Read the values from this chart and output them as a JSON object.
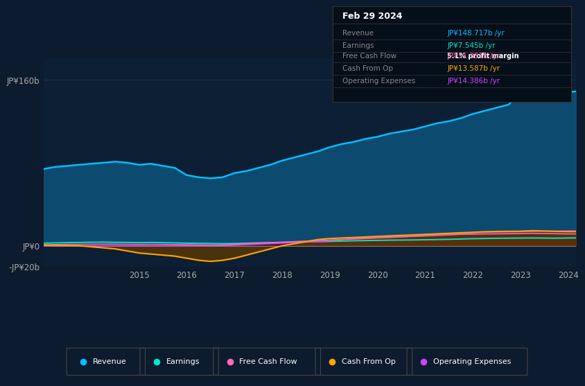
{
  "bg_color": "#0d1b2e",
  "plot_bg_color": "#0d1f35",
  "grid_color": "#1a3050",
  "title_date": "Feb 29 2024",
  "info_box_rows": [
    {
      "label": "Revenue",
      "value": "JP¥148.717b /yr",
      "color": "#00bfff",
      "extra": null
    },
    {
      "label": "Earnings",
      "value": "JP¥7.545b /yr",
      "color": "#00e5cc",
      "extra": "5.1% profit margin"
    },
    {
      "label": "Free Cash Flow",
      "value": "JP¥11.391b /yr",
      "color": "#ff69b4",
      "extra": null
    },
    {
      "label": "Cash From Op",
      "value": "JP¥13.587b /yr",
      "color": "#ffa500",
      "extra": null
    },
    {
      "label": "Operating Expenses",
      "value": "JP¥14.386b /yr",
      "color": "#cc44ff",
      "extra": null
    }
  ],
  "years": [
    2013.0,
    2013.25,
    2013.5,
    2013.75,
    2014.0,
    2014.25,
    2014.5,
    2014.75,
    2015.0,
    2015.25,
    2015.5,
    2015.75,
    2016.0,
    2016.25,
    2016.5,
    2016.75,
    2017.0,
    2017.25,
    2017.5,
    2017.75,
    2018.0,
    2018.25,
    2018.5,
    2018.75,
    2019.0,
    2019.25,
    2019.5,
    2019.75,
    2020.0,
    2020.25,
    2020.5,
    2020.75,
    2021.0,
    2021.25,
    2021.5,
    2021.75,
    2022.0,
    2022.25,
    2022.5,
    2022.75,
    2023.0,
    2023.25,
    2023.5,
    2023.75,
    2024.0,
    2024.16
  ],
  "revenue": [
    74,
    76,
    77,
    78,
    79,
    80,
    81,
    80,
    78,
    79,
    77,
    75,
    68,
    66,
    65,
    66,
    70,
    72,
    75,
    78,
    82,
    85,
    88,
    91,
    95,
    98,
    100,
    103,
    105,
    108,
    110,
    112,
    115,
    118,
    120,
    123,
    127,
    130,
    133,
    136,
    148,
    155,
    153,
    151,
    148,
    148.7
  ],
  "earnings": [
    2.5,
    2.8,
    3.0,
    3.2,
    3.4,
    3.5,
    3.3,
    3.2,
    3.0,
    3.2,
    3.0,
    2.8,
    2.5,
    2.3,
    2.2,
    2.0,
    2.2,
    2.5,
    2.8,
    3.0,
    3.2,
    3.5,
    3.8,
    4.0,
    4.2,
    4.5,
    4.8,
    5.0,
    5.2,
    5.4,
    5.5,
    5.6,
    5.8,
    6.0,
    6.2,
    6.5,
    6.8,
    7.0,
    7.2,
    7.3,
    7.4,
    7.5,
    7.4,
    7.3,
    7.5,
    7.545
  ],
  "free_cash_flow": [
    1.0,
    1.2,
    1.3,
    1.4,
    1.5,
    1.6,
    1.5,
    1.4,
    1.3,
    1.4,
    1.3,
    1.2,
    1.0,
    0.8,
    0.7,
    0.8,
    1.5,
    2.0,
    2.5,
    3.0,
    3.5,
    4.0,
    4.5,
    5.0,
    5.5,
    6.0,
    6.5,
    7.0,
    7.5,
    8.0,
    8.5,
    9.0,
    9.5,
    10.0,
    10.5,
    11.0,
    11.2,
    11.4,
    11.5,
    11.6,
    11.8,
    12.0,
    11.8,
    11.6,
    11.4,
    11.391
  ],
  "cash_from_op": [
    0.5,
    0.3,
    0.2,
    0.0,
    -1.0,
    -2.0,
    -3.0,
    -5.0,
    -7.0,
    -8.0,
    -9.0,
    -10.0,
    -12.0,
    -14.0,
    -15.0,
    -14.0,
    -12.0,
    -9.0,
    -6.0,
    -3.0,
    0.0,
    2.0,
    4.0,
    6.0,
    7.0,
    7.5,
    8.0,
    8.5,
    9.0,
    9.5,
    10.0,
    10.5,
    11.0,
    11.5,
    12.0,
    12.5,
    13.0,
    13.5,
    13.8,
    13.9,
    14.0,
    14.5,
    14.2,
    13.8,
    13.6,
    13.587
  ],
  "operating_expenses": [
    0.0,
    0.0,
    0.0,
    0.0,
    0.0,
    0.0,
    0.0,
    0.0,
    0.0,
    0.0,
    0.0,
    0.0,
    0.0,
    0.0,
    0.0,
    0.0,
    0.5,
    1.0,
    1.5,
    2.0,
    2.5,
    3.0,
    3.5,
    4.0,
    5.0,
    6.0,
    7.0,
    8.0,
    8.5,
    9.0,
    9.5,
    10.0,
    10.5,
    11.0,
    11.5,
    12.0,
    12.5,
    13.0,
    13.2,
    13.4,
    13.6,
    13.8,
    14.0,
    14.2,
    14.4,
    14.386
  ],
  "ylim": [
    -20,
    180
  ],
  "yticks": [
    -20,
    0,
    160
  ],
  "ytick_labels": [
    "-JP¥20b",
    "JP¥0",
    "JP¥160b"
  ],
  "xtick_years": [
    2015,
    2016,
    2017,
    2018,
    2019,
    2020,
    2021,
    2022,
    2023,
    2024
  ],
  "revenue_color": "#00bfff",
  "revenue_fill": "#0d4a70",
  "earnings_color": "#00e5cc",
  "earnings_fill": "#003838",
  "free_cash_flow_color": "#ff69b4",
  "free_cash_flow_fill": "#5a1030",
  "cash_from_op_color": "#ffa500",
  "cash_from_op_fill": "#5a3800",
  "operating_expenses_color": "#cc44ff",
  "operating_expenses_fill": "#3d0060",
  "legend_labels": [
    "Revenue",
    "Earnings",
    "Free Cash Flow",
    "Cash From Op",
    "Operating Expenses"
  ],
  "legend_colors": [
    "#00bfff",
    "#00e5cc",
    "#ff69b4",
    "#ffa500",
    "#cc44ff"
  ]
}
